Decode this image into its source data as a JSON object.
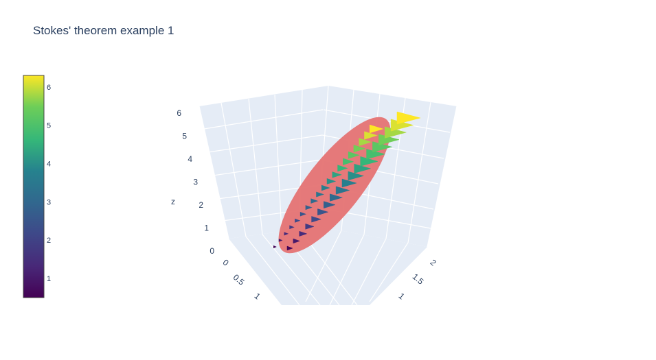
{
  "chart_data": {
    "type": "3d-surface-cones",
    "title": "Stokes' theorem example 1",
    "surface_color": "#e57373",
    "colorscale": "Viridis",
    "colorbar": {
      "min": 0.5,
      "max": 6.3,
      "ticks": [
        1,
        2,
        3,
        4,
        5,
        6
      ]
    },
    "z_axis": {
      "label": "z",
      "ticks": [
        0,
        1,
        2,
        3,
        4,
        5,
        6
      ]
    },
    "x_axis": {
      "label": "",
      "ticks": [
        0,
        0.5,
        1
      ]
    },
    "y_axis": {
      "label": "",
      "ticks": [
        1,
        1.5,
        2
      ]
    },
    "cones": [
      {
        "t": 0.6
      },
      {
        "t": 1.0
      },
      {
        "t": 1.4
      },
      {
        "t": 1.8
      },
      {
        "t": 2.2
      },
      {
        "t": 2.5
      },
      {
        "t": 2.8
      },
      {
        "t": 3.1
      },
      {
        "t": 3.4
      },
      {
        "t": 3.7
      },
      {
        "t": 4.0
      },
      {
        "t": 4.3
      },
      {
        "t": 4.6
      },
      {
        "t": 4.9
      },
      {
        "t": 5.2
      },
      {
        "t": 5.5
      },
      {
        "t": 5.8
      },
      {
        "t": 6.1
      },
      {
        "t": 6.3
      }
    ]
  }
}
